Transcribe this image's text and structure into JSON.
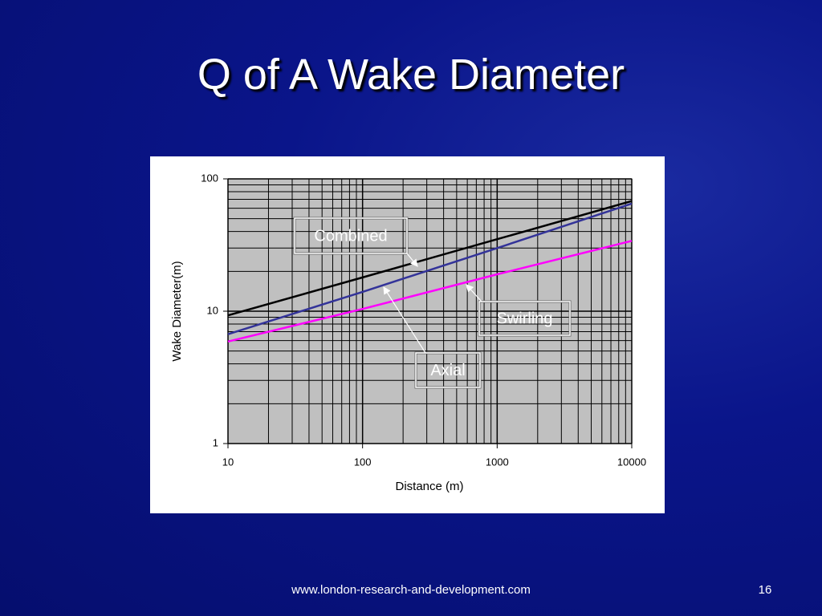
{
  "title": "Q of A Wake Diameter",
  "footer": "www.london-research-and-development.com",
  "page_number": "16",
  "chart_data": {
    "type": "line",
    "x_label": "Distance (m)",
    "y_label": "Wake Diameter(m)",
    "x": [
      10,
      100,
      1000,
      10000
    ],
    "series": [
      {
        "name": "Combined",
        "color": "#000000",
        "values": [
          9.3,
          18,
          35,
          68
        ]
      },
      {
        "name": "Axial",
        "color": "#333399",
        "values": [
          6.7,
          14,
          30,
          65
        ]
      },
      {
        "name": "Swirling",
        "color": "#ff00ff",
        "values": [
          5.9,
          10.4,
          19,
          34
        ]
      }
    ],
    "xscale": "log",
    "yscale": "log",
    "xlim": [
      10,
      10000
    ],
    "ylim": [
      1,
      100
    ],
    "xticks": [
      10,
      100,
      1000,
      10000
    ],
    "yticks": [
      1,
      10,
      100
    ],
    "grid": true,
    "minor_grid": true
  }
}
